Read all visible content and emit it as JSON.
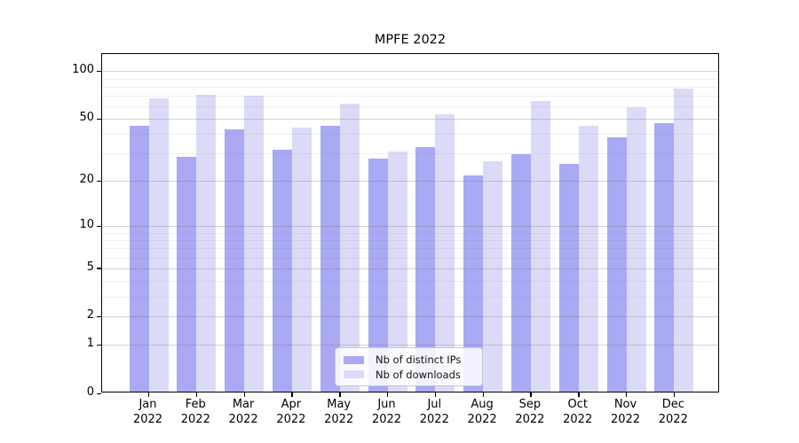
{
  "chart_data": {
    "type": "bar",
    "title": "MPFE 2022",
    "categories": [
      "Jan 2022",
      "Feb 2022",
      "Mar 2022",
      "Apr 2022",
      "May 2022",
      "Jun 2022",
      "Jul 2022",
      "Aug 2022",
      "Sep 2022",
      "Oct 2022",
      "Nov 2022",
      "Dec 2022"
    ],
    "x_tick_month": [
      "Jan",
      "Feb",
      "Mar",
      "Apr",
      "May",
      "Jun",
      "Jul",
      "Aug",
      "Sep",
      "Oct",
      "Nov",
      "Dec"
    ],
    "x_tick_year": "2022",
    "series": [
      {
        "name": "Nb of distinct IPs",
        "color": "#a9a9f4",
        "values": [
          44,
          28,
          42,
          31,
          44,
          27,
          32,
          21,
          29,
          25,
          37,
          46
        ]
      },
      {
        "name": "Nb of downloads",
        "color": "#dbdbf8",
        "values": [
          66,
          69,
          68,
          43,
          61,
          30,
          52,
          26,
          63,
          44,
          58,
          76
        ]
      }
    ],
    "yscale": "log1p",
    "ylim": [
      0,
      128
    ],
    "y_ticks": [
      0,
      1,
      2,
      5,
      10,
      20,
      50,
      100
    ],
    "y_minor_ticks": [
      3,
      4,
      6,
      7,
      8,
      9,
      30,
      40,
      60,
      70,
      80,
      90
    ],
    "grid": "on, drawn over bars",
    "legend_position": "bottom-center"
  },
  "colors": {
    "ips_bar": "#a9a9f4",
    "downloads_bar": "#dbdbf8",
    "axis": "#000000",
    "major_grid": "rgba(110,110,110,0.30)",
    "minor_grid": "rgba(110,110,110,0.11)",
    "background": "#ffffff"
  }
}
